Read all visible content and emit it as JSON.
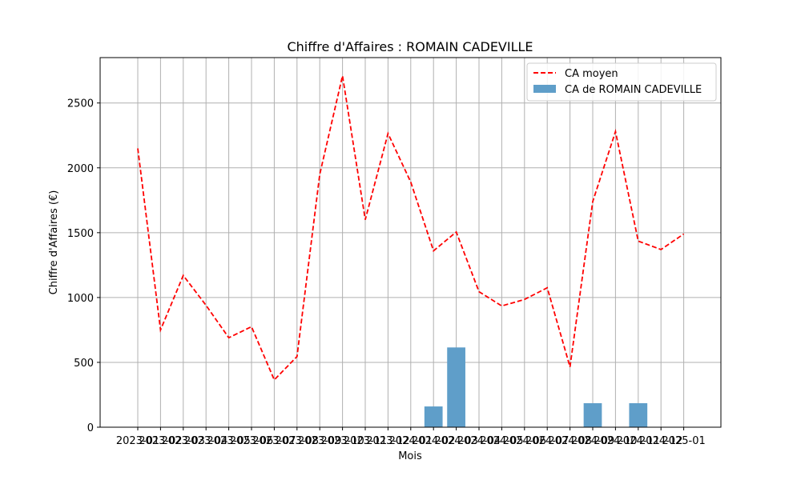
{
  "chart_data": {
    "type": "bar",
    "title": "Chiffre d'Affaires : ROMAIN CADEVILLE",
    "xlabel": "Mois",
    "ylabel": "Chiffre d'Affaires (€)",
    "ylim": [
      0,
      2850
    ],
    "y_ticks": [
      0,
      500,
      1000,
      1500,
      2000,
      2500
    ],
    "grid": true,
    "legend_position": "top-right",
    "categories": [
      "2023-01",
      "2023-02",
      "2023-03",
      "2023-04",
      "2023-05",
      "2023-06",
      "2023-07",
      "2023-08",
      "2023-09",
      "2023-10",
      "2023-11",
      "2023-12",
      "2024-01",
      "2024-02",
      "2024-03",
      "2024-04",
      "2024-05",
      "2024-06",
      "2024-07",
      "2024-08",
      "2024-09",
      "2024-10",
      "2024-11",
      "2024-12",
      "2025-01"
    ],
    "series": [
      {
        "name": "CA moyen",
        "kind": "line",
        "color": "#ff0000",
        "style": "dashed",
        "values": [
          2150,
          750,
          1170,
          940,
          690,
          775,
          365,
          545,
          1950,
          2710,
          1600,
          2265,
          1890,
          1360,
          1505,
          1045,
          935,
          985,
          1075,
          465,
          1740,
          2280,
          1435,
          1370,
          1490
        ]
      },
      {
        "name": "CA de ROMAIN CADEVILLE",
        "kind": "bar",
        "color": "#5f9ec9",
        "values": [
          null,
          null,
          null,
          null,
          null,
          null,
          null,
          null,
          null,
          null,
          null,
          null,
          null,
          160,
          615,
          null,
          null,
          null,
          null,
          null,
          185,
          null,
          185,
          null,
          null
        ]
      }
    ]
  }
}
